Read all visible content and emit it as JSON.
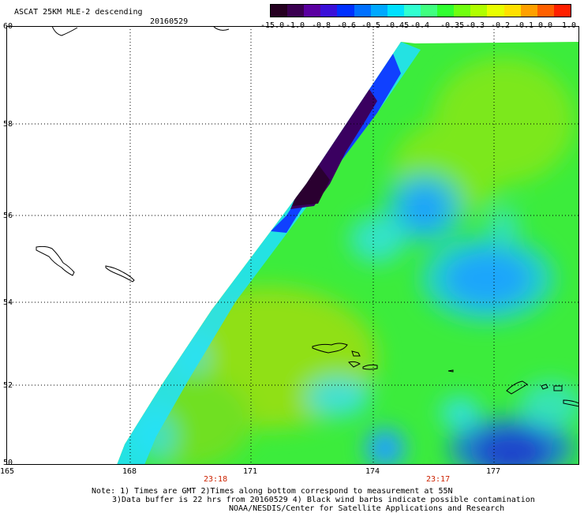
{
  "title": "ASCAT 25KM MLE-2 descending",
  "date": "20160529",
  "colorbar": {
    "labels": [
      "-15.0",
      "-1.0",
      "-0.8",
      "-0.6",
      "-0.5",
      "-0.45",
      "-0.4",
      "-0.35",
      "-0.3",
      "-0.2",
      "-0.1",
      "0.0",
      "1.0"
    ],
    "colors": [
      "#250020",
      "#3a0050",
      "#5a00a0",
      "#3a10d8",
      "#0030ff",
      "#0070ff",
      "#00a8ff",
      "#00e0ff",
      "#30ffd0",
      "#40ff80",
      "#30ff30",
      "#70ff10",
      "#b0ff00",
      "#e8ff00",
      "#ffe000",
      "#ffa000",
      "#ff6000",
      "#ff2000"
    ]
  },
  "axes": {
    "lat_labels": [
      "60",
      "58",
      "56",
      "54",
      "52",
      "50"
    ],
    "lon_labels": [
      "165",
      "168",
      "171",
      "174",
      "177"
    ]
  },
  "times": [
    "23:18",
    "23:17"
  ],
  "notes": [
    "Note: 1) Times are GMT 2)Times along bottom correspond to measurement at 55N",
    "3)Data buffer is 22 hrs from 20160529 4) Black wind barbs indicate possible contamination",
    "NOAA/NESDIS/Center for Satellite Applications and Research"
  ]
}
